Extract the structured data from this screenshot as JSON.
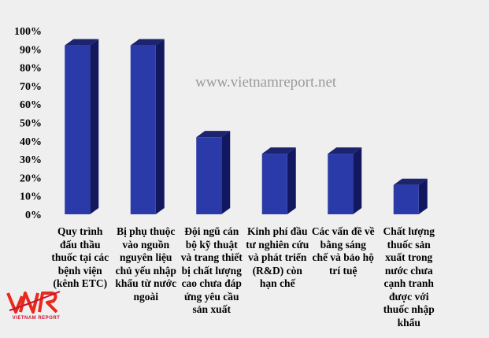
{
  "watermark": "www.vietnamreport.net",
  "logo": {
    "brand_text": "VIETNAM REPORT"
  },
  "colors": {
    "bar_front": "#2a3aa8",
    "bar_top": "#1c2470",
    "bar_side": "#111860",
    "background": "#efefef"
  },
  "chart_data": {
    "type": "bar",
    "style": "3d-column",
    "categories": [
      "Quy trình đấu thầu thuốc tại các bệnh viện (kênh ETC)",
      "Bị phụ thuộc vào nguồn nguyên liệu chủ yếu nhập khẩu từ nước ngoài",
      "Đội ngũ cán bộ kỹ thuật và trang thiết bị chất lượng cao chưa đáp ứng yêu cầu sản xuất",
      "Kinh phí đầu tư nghiên cứu và phát triển (R&D) còn hạn chế",
      "Các vấn đề về bằng sáng chế và bảo hộ trí tuệ",
      "Chất lượng thuốc sản xuất trong nước chưa cạnh tranh được với thuốc nhập khẩu"
    ],
    "values": [
      92,
      92,
      42,
      33,
      33,
      16
    ],
    "ylim": [
      0,
      100
    ],
    "y_ticks": [
      "0%",
      "10%",
      "20%",
      "30%",
      "40%",
      "50%",
      "60%",
      "70%",
      "80%",
      "90%",
      "100%"
    ],
    "grid": false,
    "legend": "none"
  }
}
